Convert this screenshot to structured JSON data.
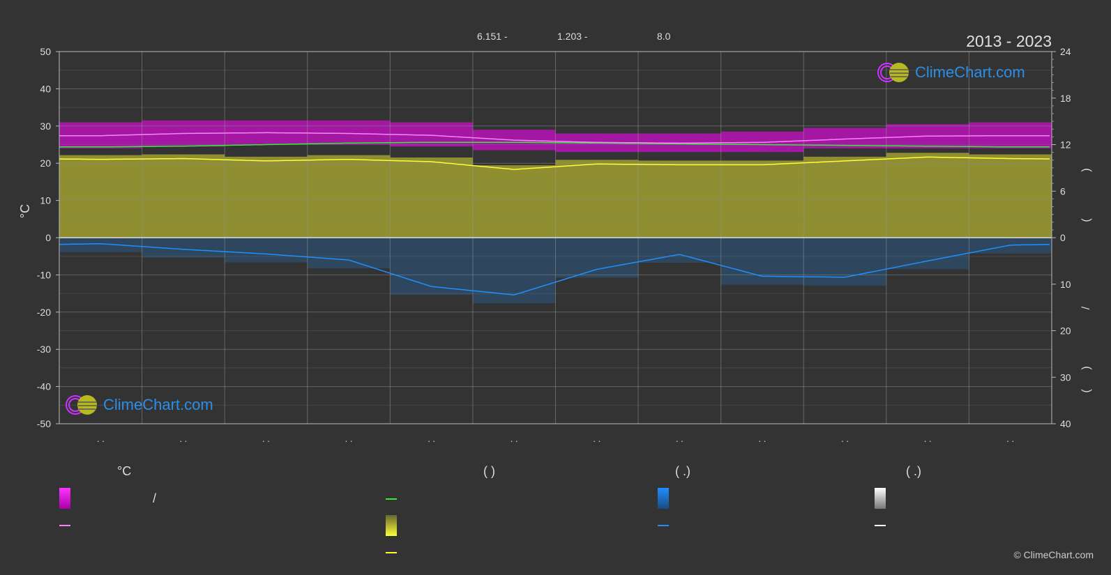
{
  "header": {
    "stat1": "6.151 -",
    "stat2": "1.203 -",
    "stat3": "8.0",
    "period": "2013 - 2023"
  },
  "brand": {
    "name": "ClimeChart.com",
    "copyright": "© ClimeChart.com"
  },
  "axes": {
    "left_unit": "°C",
    "left_ticks": [
      50,
      40,
      30,
      20,
      10,
      0,
      -10,
      -20,
      -30,
      -40,
      -50
    ],
    "right_sun_ticks": [
      24,
      18,
      12,
      6,
      0
    ],
    "right_rain_ticks": [
      10,
      20,
      30,
      40
    ],
    "right_labels": [
      ")",
      "(",
      "/",
      ")",
      "("
    ],
    "month_labels": [
      ". .",
      ". .",
      ". .",
      ". .",
      ". .",
      ". .",
      ". .",
      ". .",
      ". .",
      ". .",
      ". .",
      ". ."
    ]
  },
  "legend": {
    "col1_head": "°C",
    "col2_head": "(          )",
    "col3_head": "(   .)",
    "col4_head": "(   .)",
    "slash": "/"
  },
  "colors": {
    "background": "#333333",
    "max_temp": "#ff00ff",
    "mean_temp_line": "#ff80ff",
    "daylight": "#33ee33",
    "sunshine": "#c8c832",
    "sunshine_line": "#ffff33",
    "rain": "#1e90ff",
    "snow": "#ffffff"
  },
  "chart_data": {
    "type": "area",
    "x": [
      1,
      2,
      3,
      4,
      5,
      6,
      7,
      8,
      9,
      10,
      11,
      12
    ],
    "temp_ylim": [
      -50,
      50
    ],
    "sun_ylim": [
      0,
      24
    ],
    "rain_ylim": [
      0,
      40
    ],
    "grid": true,
    "series": [
      {
        "values": [
          27.4,
          28.0,
          28.2,
          28.0,
          27.5,
          26.2,
          25.6,
          25.4,
          25.6,
          26.5,
          27.3,
          27.4
        ]
      },
      {
        "values": [
          31,
          31.5,
          31.5,
          31.5,
          31,
          29,
          28,
          28,
          28.5,
          29.5,
          30.5,
          31
        ]
      },
      {
        "values": [
          24,
          24.5,
          25,
          25,
          24.5,
          23.5,
          23,
          23,
          23,
          24,
          24,
          24
        ]
      },
      {
        "values": [
          11.7,
          11.8,
          12.0,
          12.2,
          12.3,
          12.3,
          12.2,
          12.1,
          12.0,
          11.9,
          11.8,
          11.7
        ]
      },
      {
        "values": [
          10.1,
          10.2,
          9.9,
          10.1,
          9.8,
          8.8,
          9.5,
          9.4,
          9.4,
          9.9,
          10.4,
          10.2
        ]
      },
      {
        "values": [
          1.3,
          2.5,
          3.5,
          4.8,
          10.5,
          12.3,
          6.8,
          3.6,
          8.3,
          8.5,
          5.0,
          1.6
        ]
      }
    ]
  }
}
